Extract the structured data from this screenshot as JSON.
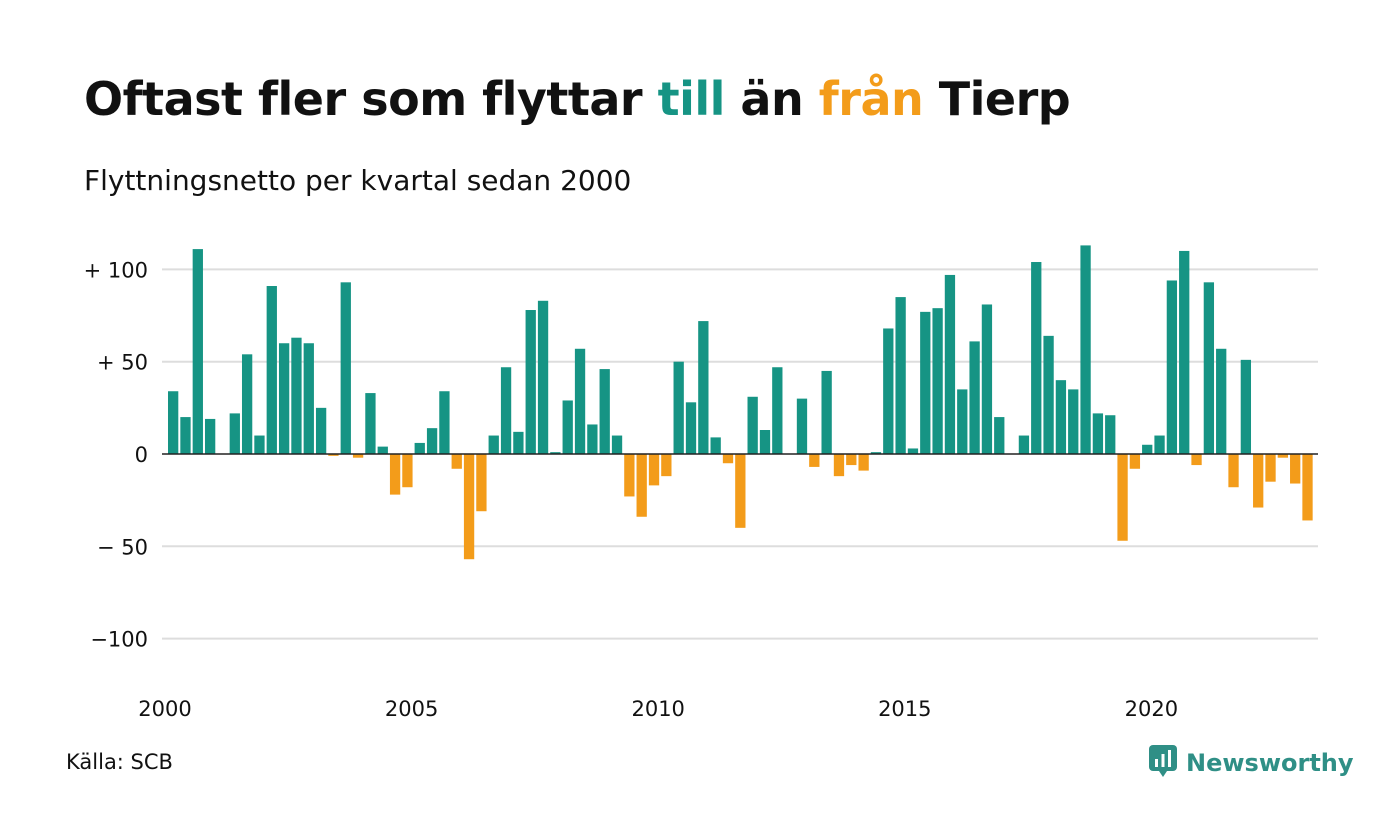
{
  "title": {
    "pre": "Oftast fler som flyttar ",
    "pos": "till",
    "mid": " än ",
    "neg": "från",
    "post": " Tierp"
  },
  "subtitle": "Flyttningsnetto per kvartal sedan 2000",
  "source": "Källa: SCB",
  "brand": {
    "name": "Newsworthy",
    "icon": "newsworthy-logo-icon",
    "color": "#2f8f86"
  },
  "colors": {
    "positive": "#169484",
    "negative": "#f39c1a",
    "grid": "#dddddd",
    "zero": "#222222"
  },
  "chart_data": {
    "type": "bar",
    "title": "Oftast fler som flyttar till än från Tierp",
    "subtitle": "Flyttningsnetto per kvartal sedan 2000",
    "xlabel": "",
    "ylabel": "",
    "x_start": "2000 Q1",
    "x_ticks": [
      "2000",
      "2005",
      "2010",
      "2015",
      "2020"
    ],
    "y_ticks": [
      {
        "value": 100,
        "label": "+ 100"
      },
      {
        "value": 50,
        "label": "+  50"
      },
      {
        "value": 0,
        "label": "0"
      },
      {
        "value": -50,
        "label": "− 50"
      },
      {
        "value": -100,
        "label": "−100"
      }
    ],
    "ylim": [
      -100,
      100
    ],
    "grid": true,
    "values": [
      34,
      20,
      111,
      19,
      0,
      22,
      54,
      10,
      91,
      60,
      63,
      60,
      25,
      -1,
      93,
      -2,
      33,
      4,
      -22,
      -18,
      6,
      14,
      34,
      -8,
      -57,
      -31,
      10,
      47,
      12,
      78,
      83,
      1,
      29,
      57,
      16,
      46,
      10,
      -23,
      -34,
      -17,
      -12,
      50,
      28,
      72,
      9,
      -5,
      -40,
      31,
      13,
      47,
      0,
      30,
      -7,
      45,
      -12,
      -6,
      -9,
      1,
      68,
      85,
      3,
      77,
      79,
      97,
      35,
      61,
      81,
      20,
      0,
      10,
      104,
      64,
      40,
      35,
      113,
      22,
      21,
      -47,
      -8,
      5,
      10,
      94,
      110,
      -6,
      93,
      57,
      -18,
      51,
      -29,
      -15,
      -2,
      -16,
      -36
    ]
  }
}
